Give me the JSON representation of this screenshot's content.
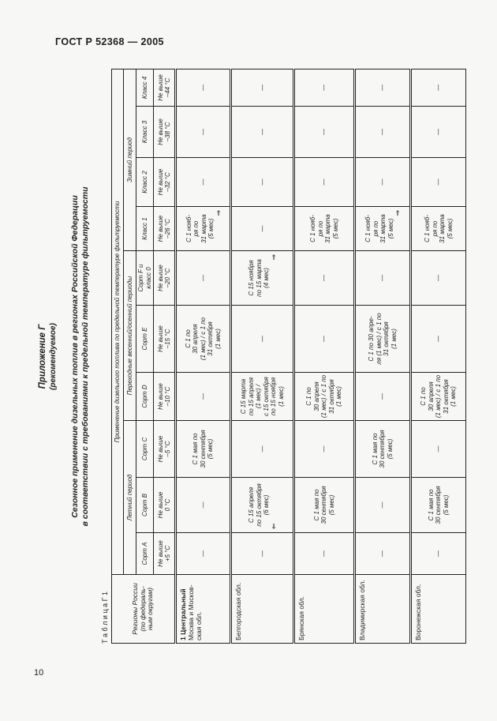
{
  "page": {
    "standard": "ГОСТ Р 52368 — 2005",
    "page_number": "10"
  },
  "appendix": {
    "title": "Приложение Г",
    "subtitle": "(рекомендуемое)",
    "heading_line1": "Сезонное применение дизельных топлив в регионах Российской Федерации",
    "heading_line2": "в соответствии с требованиями к предельной температуре фильтруемости",
    "table_caption": "Т а б л и ц а   Г 1"
  },
  "table": {
    "corner_header_lines": [
      "Регионы России",
      "(по федераль-",
      "ным округам)"
    ],
    "main_header": "Применение дизельного топлива по предельной температуре фильтруемости",
    "period_groups": [
      {
        "label": "Летний период",
        "span": 3
      },
      {
        "label": "Переходные весенний/осенний периоды",
        "span": 3
      },
      {
        "label": "Зимний период",
        "span": 4
      }
    ],
    "columns": [
      {
        "name_lines": [
          "Сорт А"
        ],
        "limit_lines": [
          "Не выше",
          "+5 °С"
        ]
      },
      {
        "name_lines": [
          "Сорт В"
        ],
        "limit_lines": [
          "Не выше",
          "0 °С"
        ]
      },
      {
        "name_lines": [
          "Сорт С"
        ],
        "limit_lines": [
          "Не выше",
          "–5 °С"
        ]
      },
      {
        "name_lines": [
          "Сорт D"
        ],
        "limit_lines": [
          "Не выше",
          "–10 °С"
        ]
      },
      {
        "name_lines": [
          "Сорт Е"
        ],
        "limit_lines": [
          "Не выше",
          "–15 °С"
        ]
      },
      {
        "name_lines": [
          "Сорт F и",
          "класс 0"
        ],
        "limit_lines": [
          "Не выше",
          "–20 °С"
        ]
      },
      {
        "name_lines": [
          "Класс 1"
        ],
        "limit_lines": [
          "Не выше",
          "–26 °С"
        ]
      },
      {
        "name_lines": [
          "Класс 2"
        ],
        "limit_lines": [
          "Не выше",
          "–32 °С"
        ]
      },
      {
        "name_lines": [
          "Класс 3"
        ],
        "limit_lines": [
          "Не выше",
          "–38 °С"
        ]
      },
      {
        "name_lines": [
          "Класс 4"
        ],
        "limit_lines": [
          "Не выше",
          "–44 °С"
        ]
      }
    ],
    "rows": [
      {
        "region_lines": [
          "1 Центральный",
          "Москва и Москов-",
          "ская обл."
        ],
        "region_first_bold": true,
        "cells": [
          {
            "lines": [
              "—"
            ]
          },
          {
            "lines": [
              "—"
            ]
          },
          {
            "lines": [
              "С 1 мая по",
              "30 сентября",
              "(5 мес)"
            ]
          },
          {
            "lines": [
              "—"
            ]
          },
          {
            "lines": [
              "С 1 по",
              "30 апреля",
              "(1 мес) / с 1 по",
              "31 октября",
              "(1 мес)"
            ]
          },
          {
            "lines": [
              "—"
            ]
          },
          {
            "lines": [
              "С 1 нояб-",
              "ря по",
              "31 марта",
              "(5 мес)"
            ],
            "arrow": "right"
          },
          {
            "lines": [
              "—"
            ]
          },
          {
            "lines": [
              "—"
            ]
          },
          {
            "lines": [
              "—"
            ]
          }
        ]
      },
      {
        "region_lines": [
          "Белгородская обл."
        ],
        "region_first_bold": false,
        "cells": [
          {
            "lines": [
              "—"
            ]
          },
          {
            "lines": [
              "С 15 апреля",
              "по 15 октября",
              "(6 мес)"
            ],
            "arrow": "left"
          },
          {
            "lines": [
              "—"
            ]
          },
          {
            "lines": [
              "С 15 марта",
              "по 15 апреля",
              "(1 мес) /",
              "с 15 октября",
              "по 15 ноября",
              "(1 мес)"
            ]
          },
          {
            "lines": [
              "—"
            ]
          },
          {
            "lines": [
              "С 15 ноября",
              "по 15 марта",
              "(4 мес)"
            ],
            "arrow": "right"
          },
          {
            "lines": [
              "—"
            ]
          },
          {
            "lines": [
              "—"
            ]
          },
          {
            "lines": [
              "—"
            ]
          },
          {
            "lines": [
              "—"
            ]
          }
        ]
      },
      {
        "region_lines": [
          "Брянская обл."
        ],
        "region_first_bold": false,
        "cells": [
          {
            "lines": [
              "—"
            ]
          },
          {
            "lines": [
              "С 1 мая по",
              "30 сентября",
              "(5 мес)"
            ]
          },
          {
            "lines": [
              "—"
            ]
          },
          {
            "lines": [
              "С 1 по",
              "30 апреля",
              "(1 мес) / с 1 по",
              "31 октября",
              "(1 мес)"
            ]
          },
          {
            "lines": [
              "—"
            ]
          },
          {
            "lines": [
              "—"
            ]
          },
          {
            "lines": [
              "С 1 нояб-",
              "ря по",
              "31 марта",
              "(5 мес)"
            ]
          },
          {
            "lines": [
              "—"
            ]
          },
          {
            "lines": [
              "—"
            ]
          },
          {
            "lines": [
              "—"
            ]
          }
        ]
      },
      {
        "region_lines": [
          "Владимирская обл."
        ],
        "region_first_bold": false,
        "cells": [
          {
            "lines": [
              "—"
            ]
          },
          {
            "lines": [
              "—"
            ]
          },
          {
            "lines": [
              "С 1 мая по",
              "30 сентября",
              "(5 мес)"
            ]
          },
          {
            "lines": [
              "—"
            ]
          },
          {
            "lines": [
              "С 1 по 30 апре-",
              "ля (1 мес) / с 1 по",
              "31 октября",
              "(1 мес)"
            ]
          },
          {
            "lines": [
              "—"
            ]
          },
          {
            "lines": [
              "С 1 нояб-",
              "ря по",
              "31 марта",
              "(5 мес)"
            ],
            "arrow": "right"
          },
          {
            "lines": [
              "—"
            ]
          },
          {
            "lines": [
              "—"
            ]
          },
          {
            "lines": [
              "—"
            ]
          }
        ]
      },
      {
        "region_lines": [
          "Воронежская обл."
        ],
        "region_first_bold": false,
        "cells": [
          {
            "lines": [
              "—"
            ]
          },
          {
            "lines": [
              "С 1 мая по",
              "30 сентября",
              "(5 мес)"
            ]
          },
          {
            "lines": [
              "—"
            ]
          },
          {
            "lines": [
              "С 1 по",
              "30 апреля",
              "(1 мес) / с 1 по",
              "31 октября",
              "(1 мес)"
            ]
          },
          {
            "lines": [
              "—"
            ]
          },
          {
            "lines": [
              "—"
            ]
          },
          {
            "lines": [
              "С 1 нояб-",
              "ря по",
              "31 марта",
              "(5 мес)"
            ]
          },
          {
            "lines": [
              "—"
            ]
          },
          {
            "lines": [
              "—"
            ]
          },
          {
            "lines": [
              "—"
            ]
          }
        ]
      }
    ],
    "arrow_glyphs": {
      "right": "⇒",
      "left": "⇐"
    }
  }
}
